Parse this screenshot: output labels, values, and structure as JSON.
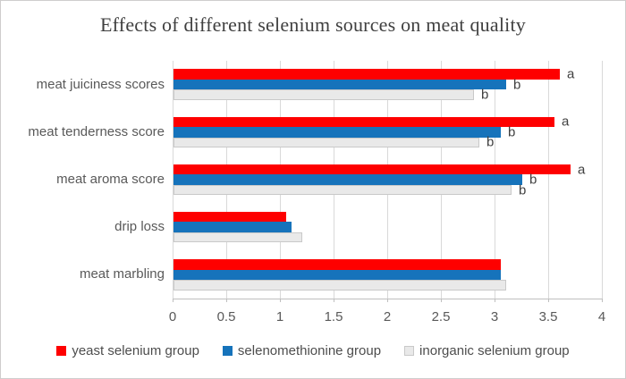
{
  "title": "Effects of different selenium sources on meat quality",
  "chart_data": {
    "type": "bar",
    "orientation": "horizontal",
    "title": "Effects of different selenium sources on meat quality",
    "categories": [
      "meat juiciness scores",
      "meat tenderness score",
      "meat aroma score",
      "drip loss",
      "meat marbling"
    ],
    "series": [
      {
        "name": "yeast selenium group",
        "color": "#fe0000",
        "border": "",
        "values": [
          3.6,
          3.55,
          3.7,
          1.05,
          3.05
        ],
        "letters": [
          "a",
          "a",
          "a",
          "",
          ""
        ]
      },
      {
        "name": "selenomethionine group",
        "color": "#1673bb",
        "border": "",
        "values": [
          3.1,
          3.05,
          3.25,
          1.1,
          3.05
        ],
        "letters": [
          "b",
          "b",
          "b",
          "",
          ""
        ]
      },
      {
        "name": "inorganic selenium group",
        "color": "#e9e9e9",
        "border": "#c9c9c9",
        "values": [
          2.8,
          2.85,
          3.15,
          1.2,
          3.1
        ],
        "letters": [
          "b",
          "b",
          "b",
          "",
          ""
        ]
      }
    ],
    "xlim": [
      0,
      4
    ],
    "xticks": [
      0,
      0.5,
      1,
      1.5,
      2,
      2.5,
      3,
      3.5,
      4
    ],
    "xtick_labels": [
      "0",
      "0.5",
      "1",
      "1.5",
      "2",
      "2.5",
      "3",
      "3.5",
      "4"
    ],
    "grid": "vertical",
    "legend_position": "bottom",
    "annotation_note": "letters a/b mark significance groups beside bar ends",
    "colors": {
      "gridline": "#d9d9d9",
      "axis": "#bfbfbf",
      "title_text": "#3f3f3f",
      "label_text": "#595959",
      "letter_text": "#404040"
    }
  }
}
